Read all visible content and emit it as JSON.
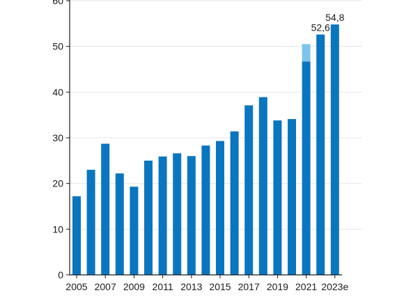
{
  "chart_data": {
    "type": "bar",
    "title": "",
    "xlabel": "",
    "ylabel": "",
    "ylim": [
      0,
      60
    ],
    "yticks": [
      0,
      10,
      20,
      30,
      40,
      50,
      60
    ],
    "grid": true,
    "categories": [
      "2005",
      "2006",
      "2007",
      "2008",
      "2009",
      "2010",
      "2011",
      "2012",
      "2013",
      "2014",
      "2015",
      "2016",
      "2017",
      "2018",
      "2019",
      "2020",
      "2021",
      "2022",
      "2023e"
    ],
    "xtick_labels": [
      "2005",
      "2007",
      "2009",
      "2011",
      "2013",
      "2015",
      "2017",
      "2019",
      "2021",
      "2023e"
    ],
    "series": [
      {
        "values": [
          17.2,
          23.0,
          28.7,
          22.2,
          19.3,
          25.0,
          25.9,
          26.6,
          26.0,
          28.3,
          29.3,
          31.4,
          37.1,
          38.9,
          33.8,
          34.1,
          46.7,
          52.6,
          54.8
        ],
        "color": "#0a76c0"
      },
      {
        "values": [
          0,
          0,
          0,
          0,
          0,
          0,
          0,
          0,
          0,
          0,
          0,
          0,
          0,
          0,
          0,
          0,
          3.8,
          0,
          0
        ],
        "color": "#7cc4ec"
      }
    ],
    "data_labels": [
      {
        "category": "2022",
        "text": "52,6"
      },
      {
        "category": "2023e",
        "text": "54,8"
      }
    ]
  }
}
